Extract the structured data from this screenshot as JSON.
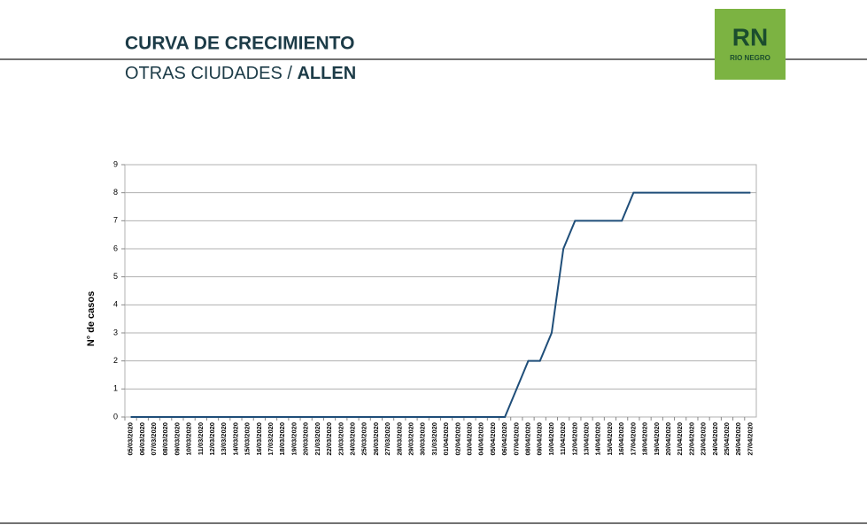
{
  "header": {
    "title": "CURVA DE CRECIMIENTO",
    "subtitle": "OTRAS CIUDADES /",
    "city": "ALLEN"
  },
  "logo": {
    "mark": "RN",
    "name": "RIO NEGRO"
  },
  "chart_data": {
    "type": "line",
    "y_label": "N° de casos",
    "categories": [
      "05/03/2020",
      "06/03/2020",
      "07/03/2020",
      "08/03/2020",
      "09/03/2020",
      "10/03/2020",
      "11/03/2020",
      "12/03/2020",
      "13/03/2020",
      "14/03/2020",
      "15/03/2020",
      "16/03/2020",
      "17/03/2020",
      "18/03/2020",
      "19/03/2020",
      "20/03/2020",
      "21/03/2020",
      "22/03/2020",
      "23/03/2020",
      "24/03/2020",
      "25/03/2020",
      "26/03/2020",
      "27/03/2020",
      "28/03/2020",
      "29/03/2020",
      "30/03/2020",
      "31/03/2020",
      "01/04/2020",
      "02/04/2020",
      "03/04/2020",
      "04/04/2020",
      "05/04/2020",
      "06/04/2020",
      "07/04/2020",
      "08/04/2020",
      "09/04/2020",
      "10/04/2020",
      "11/04/2020",
      "12/04/2020",
      "13/04/2020",
      "14/04/2020",
      "15/04/2020",
      "16/04/2020",
      "17/04/2020",
      "18/04/2020",
      "19/04/2020",
      "20/04/2020",
      "21/04/2020",
      "22/04/2020",
      "23/04/2020",
      "24/04/2020",
      "25/04/2020",
      "26/04/2020",
      "27/04/2020"
    ],
    "values": [
      0,
      0,
      0,
      0,
      0,
      0,
      0,
      0,
      0,
      0,
      0,
      0,
      0,
      0,
      0,
      0,
      0,
      0,
      0,
      0,
      0,
      0,
      0,
      0,
      0,
      0,
      0,
      0,
      0,
      0,
      0,
      0,
      0,
      1,
      2,
      2,
      3,
      6,
      7,
      7,
      7,
      7,
      7,
      8,
      8,
      8,
      8,
      8,
      8,
      8,
      8,
      8,
      8,
      8
    ],
    "color": "#1f4e79",
    "ylim": [
      0,
      9
    ],
    "yticks": [
      0,
      1,
      2,
      3,
      4,
      5,
      6,
      7,
      8,
      9
    ],
    "grid": true
  }
}
